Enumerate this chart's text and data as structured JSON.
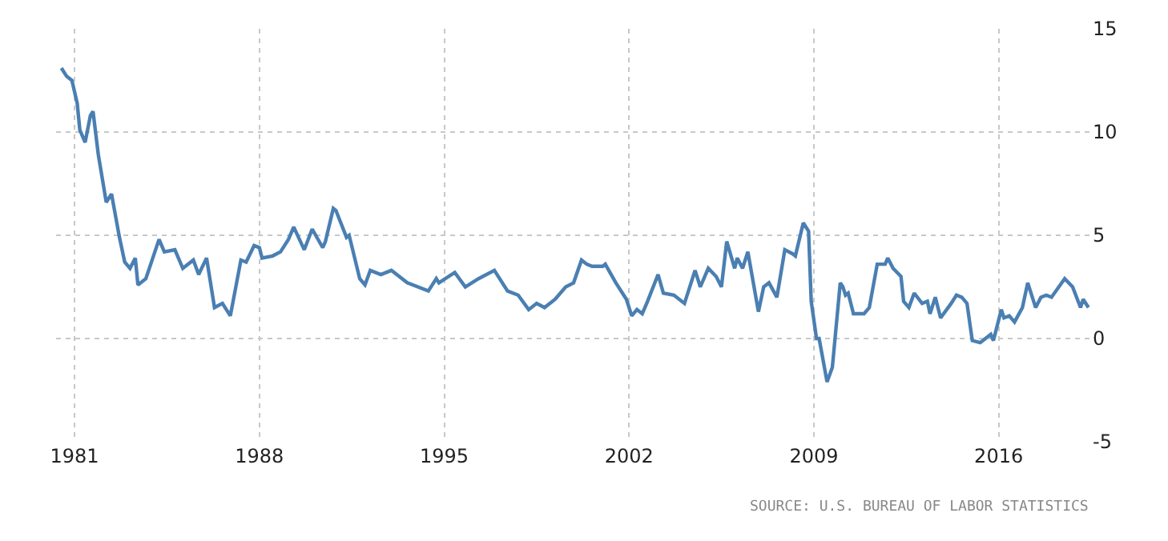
{
  "chart_data": {
    "type": "line",
    "xlim": [
      1980.3,
      2019.5
    ],
    "xticks": [
      1981,
      1988,
      1995,
      2002,
      2009,
      2016
    ],
    "ylim": [
      -5,
      15
    ],
    "yticks": [
      -5,
      0,
      5,
      10,
      15
    ],
    "grid": true,
    "marker": "none",
    "line_style": "solid",
    "annotations": [
      "SOURCE: U.S. BUREAU OF LABOR STATISTICS"
    ],
    "series": [
      {
        "color": "#4a7fb2",
        "x": [
          1980.5,
          1980.7,
          1980.9,
          1981.1,
          1981.2,
          1981.4,
          1981.6,
          1981.7,
          1981.9,
          1982.2,
          1982.4,
          1982.7,
          1982.9,
          1983.1,
          1983.3,
          1983.4,
          1983.7,
          1984.2,
          1984.4,
          1984.8,
          1985.1,
          1985.5,
          1985.7,
          1986.0,
          1986.3,
          1986.6,
          1986.9,
          1987.3,
          1987.5,
          1987.8,
          1988.0,
          1988.1,
          1988.5,
          1988.8,
          1989.1,
          1989.3,
          1989.7,
          1990.0,
          1990.4,
          1990.5,
          1990.8,
          1990.9,
          1991.3,
          1991.4,
          1991.8,
          1992.0,
          1992.2,
          1992.6,
          1993.0,
          1993.6,
          1994.4,
          1994.7,
          1994.8,
          1995.4,
          1995.8,
          1996.3,
          1996.9,
          1997.4,
          1997.8,
          1998.2,
          1998.5,
          1998.8,
          1999.2,
          1999.6,
          1999.9,
          2000.2,
          2000.4,
          2000.6,
          2001.0,
          2001.1,
          2001.5,
          2001.9,
          2002.1,
          2002.3,
          2002.5,
          2002.7,
          2003.1,
          2003.3,
          2003.7,
          2004.1,
          2004.5,
          2004.7,
          2005.0,
          2005.3,
          2005.5,
          2005.7,
          2006.0,
          2006.1,
          2006.3,
          2006.5,
          2006.9,
          2007.1,
          2007.3,
          2007.6,
          2007.9,
          2008.2,
          2008.3,
          2008.6,
          2008.8,
          2008.9,
          2009.1,
          2009.2,
          2009.4,
          2009.5,
          2009.7,
          2010.0,
          2010.1,
          2010.2,
          2010.3,
          2010.5,
          2010.9,
          2011.1,
          2011.4,
          2011.7,
          2011.8,
          2012.0,
          2012.3,
          2012.4,
          2012.6,
          2012.8,
          2013.1,
          2013.3,
          2013.4,
          2013.6,
          2013.8,
          2014.2,
          2014.4,
          2014.6,
          2014.8,
          2015.0,
          2015.3,
          2015.5,
          2015.7,
          2015.8,
          2016.1,
          2016.2,
          2016.4,
          2016.6,
          2016.9,
          2017.1,
          2017.4,
          2017.6,
          2017.8,
          2018.0,
          2018.5,
          2018.8,
          2019.1,
          2019.2,
          2019.4
        ],
        "values": [
          13.1,
          12.7,
          12.5,
          11.4,
          10.1,
          9.5,
          10.8,
          11.0,
          8.9,
          6.6,
          7.0,
          4.9,
          3.7,
          3.4,
          3.9,
          2.6,
          2.9,
          4.8,
          4.2,
          4.3,
          3.4,
          3.8,
          3.1,
          3.9,
          1.5,
          1.7,
          1.1,
          3.8,
          3.7,
          4.5,
          4.4,
          3.9,
          4.0,
          4.2,
          4.8,
          5.4,
          4.3,
          5.3,
          4.4,
          4.7,
          6.3,
          6.2,
          4.9,
          5.0,
          2.9,
          2.6,
          3.3,
          3.1,
          3.3,
          2.7,
          2.3,
          2.9,
          2.7,
          3.2,
          2.5,
          2.9,
          3.3,
          2.3,
          2.1,
          1.4,
          1.7,
          1.5,
          1.9,
          2.5,
          2.7,
          3.8,
          3.6,
          3.5,
          3.5,
          3.6,
          2.7,
          1.9,
          1.1,
          1.4,
          1.2,
          1.8,
          3.1,
          2.2,
          2.1,
          1.7,
          3.3,
          2.5,
          3.4,
          3.0,
          2.5,
          4.7,
          3.4,
          3.9,
          3.4,
          4.2,
          1.3,
          2.5,
          2.7,
          2.0,
          4.3,
          4.1,
          4.0,
          5.6,
          5.2,
          1.8,
          0.0,
          0.0,
          -1.4,
          -2.1,
          -1.4,
          2.7,
          2.5,
          2.1,
          2.2,
          1.2,
          1.2,
          1.5,
          3.6,
          3.6,
          3.9,
          3.4,
          3.0,
          1.8,
          1.5,
          2.2,
          1.7,
          1.8,
          1.2,
          2.0,
          1.0,
          1.7,
          2.1,
          2.0,
          1.7,
          -0.1,
          -0.2,
          0.0,
          0.2,
          -0.1,
          1.4,
          1.0,
          1.1,
          0.8,
          1.5,
          2.7,
          1.5,
          2.0,
          2.1,
          2.0,
          2.9,
          2.5,
          1.5,
          1.9,
          1.5
        ]
      }
    ]
  }
}
